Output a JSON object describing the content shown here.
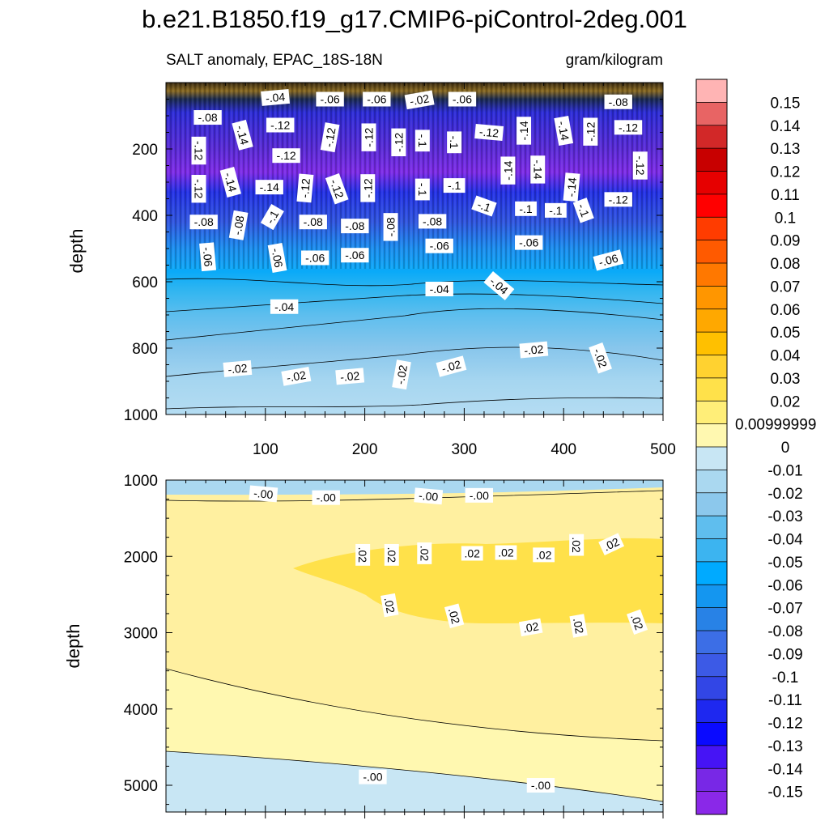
{
  "chart_data": {
    "type": "contour",
    "title": "b.e21.B1850.f19_g17.CMIP6-piControl-2deg.001",
    "subtitle_left": "SALT anomaly, EPAC_18S-18N",
    "subtitle_right": "gram/kilogram",
    "x_axis": {
      "range": [
        0,
        500
      ],
      "ticks": [
        "100",
        "200",
        "300",
        "400",
        "500"
      ]
    },
    "panels": [
      {
        "name": "upper",
        "ylabel": "depth",
        "ylim": [
          0,
          1000
        ],
        "yticks": [
          "200",
          "400",
          "600",
          "800",
          "1000"
        ],
        "contour_labels": [
          {
            "text": "-.04",
            "x": 110,
            "y": 45,
            "rot": -5
          },
          {
            "text": "-.06",
            "x": 165,
            "y": 50,
            "rot": 0
          },
          {
            "text": "-.06",
            "x": 212,
            "y": 50,
            "rot": 0
          },
          {
            "text": "-.02",
            "x": 255,
            "y": 52,
            "rot": -10
          },
          {
            "text": "-.06",
            "x": 298,
            "y": 50,
            "rot": 0
          },
          {
            "text": "-.08",
            "x": 455,
            "y": 58,
            "rot": 0
          },
          {
            "text": "-.08",
            "x": 42,
            "y": 105,
            "rot": 0
          },
          {
            "text": "-.12",
            "x": 115,
            "y": 128,
            "rot": 0
          },
          {
            "text": "-.14",
            "x": 77,
            "y": 158,
            "rot": 75
          },
          {
            "text": "-.12",
            "x": 165,
            "y": 165,
            "rot": -80
          },
          {
            "text": "-.12",
            "x": 204,
            "y": 165,
            "rot": -90
          },
          {
            "text": "-.12",
            "x": 234,
            "y": 180,
            "rot": -90
          },
          {
            "text": "-.1",
            "x": 258,
            "y": 175,
            "rot": 90
          },
          {
            "text": "-.1",
            "x": 290,
            "y": 180,
            "rot": 90
          },
          {
            "text": "-.12",
            "x": 325,
            "y": 150,
            "rot": 5
          },
          {
            "text": "-.14",
            "x": 360,
            "y": 145,
            "rot": -90
          },
          {
            "text": "-.14",
            "x": 400,
            "y": 145,
            "rot": 80
          },
          {
            "text": "-.12",
            "x": 427,
            "y": 148,
            "rot": -90
          },
          {
            "text": "-.12",
            "x": 465,
            "y": 135,
            "rot": 0
          },
          {
            "text": "-.12",
            "x": 33,
            "y": 205,
            "rot": 90
          },
          {
            "text": "-.12",
            "x": 121,
            "y": 220,
            "rot": 0
          },
          {
            "text": "-.12",
            "x": 477,
            "y": 250,
            "rot": 90
          },
          {
            "text": "-.14",
            "x": 344,
            "y": 265,
            "rot": -90
          },
          {
            "text": "-.14",
            "x": 374,
            "y": 262,
            "rot": 90
          },
          {
            "text": "-.14",
            "x": 65,
            "y": 300,
            "rot": 75
          },
          {
            "text": "-.12",
            "x": 33,
            "y": 320,
            "rot": 90
          },
          {
            "text": "-.14",
            "x": 104,
            "y": 315,
            "rot": 0
          },
          {
            "text": "-.12",
            "x": 140,
            "y": 318,
            "rot": -85
          },
          {
            "text": "-.12",
            "x": 172,
            "y": 320,
            "rot": 70
          },
          {
            "text": "-.12",
            "x": 203,
            "y": 318,
            "rot": -90
          },
          {
            "text": "-.1",
            "x": 258,
            "y": 322,
            "rot": 90
          },
          {
            "text": "-.1",
            "x": 290,
            "y": 310,
            "rot": 0
          },
          {
            "text": "-.14",
            "x": 408,
            "y": 315,
            "rot": -85
          },
          {
            "text": "-.12",
            "x": 455,
            "y": 352,
            "rot": 0
          },
          {
            "text": "-.1",
            "x": 320,
            "y": 372,
            "rot": 20
          },
          {
            "text": "-.1",
            "x": 362,
            "y": 380,
            "rot": 0
          },
          {
            "text": "-.1",
            "x": 392,
            "y": 385,
            "rot": 0
          },
          {
            "text": "-.1",
            "x": 420,
            "y": 385,
            "rot": 70
          },
          {
            "text": "-.08",
            "x": 38,
            "y": 420,
            "rot": 0
          },
          {
            "text": "-.08",
            "x": 73,
            "y": 430,
            "rot": -80
          },
          {
            "text": "-.1",
            "x": 107,
            "y": 405,
            "rot": -60
          },
          {
            "text": "-.08",
            "x": 148,
            "y": 420,
            "rot": 0
          },
          {
            "text": "-.08",
            "x": 190,
            "y": 432,
            "rot": 0
          },
          {
            "text": "-.08",
            "x": 226,
            "y": 435,
            "rot": -90
          },
          {
            "text": "-.08",
            "x": 268,
            "y": 418,
            "rot": 0
          },
          {
            "text": "-.06",
            "x": 42,
            "y": 525,
            "rot": 85
          },
          {
            "text": "-.06",
            "x": 112,
            "y": 528,
            "rot": 80
          },
          {
            "text": "-.06",
            "x": 150,
            "y": 528,
            "rot": 0
          },
          {
            "text": "-.06",
            "x": 190,
            "y": 520,
            "rot": 0
          },
          {
            "text": "-.06",
            "x": 275,
            "y": 492,
            "rot": 0
          },
          {
            "text": "-.06",
            "x": 365,
            "y": 482,
            "rot": 0
          },
          {
            "text": "-.06",
            "x": 445,
            "y": 535,
            "rot": -15
          },
          {
            "text": "-.04",
            "x": 275,
            "y": 622,
            "rot": 0
          },
          {
            "text": "-.04",
            "x": 335,
            "y": 612,
            "rot": 40
          },
          {
            "text": "-.04",
            "x": 119,
            "y": 675,
            "rot": 0
          },
          {
            "text": "-.02",
            "x": 72,
            "y": 862,
            "rot": -5
          },
          {
            "text": "-.02",
            "x": 131,
            "y": 885,
            "rot": -10
          },
          {
            "text": "-.02",
            "x": 185,
            "y": 885,
            "rot": -5
          },
          {
            "text": "-.02",
            "x": 237,
            "y": 880,
            "rot": -80
          },
          {
            "text": "-.02",
            "x": 287,
            "y": 855,
            "rot": -15
          },
          {
            "text": "-.02",
            "x": 370,
            "y": 805,
            "rot": -5
          },
          {
            "text": "-.02",
            "x": 437,
            "y": 830,
            "rot": 70
          }
        ]
      },
      {
        "name": "lower",
        "ylabel": "depth",
        "ylim": [
          1000,
          5350
        ],
        "yticks": [
          "1000",
          "2000",
          "3000",
          "4000",
          "5000"
        ],
        "contour_labels": [
          {
            "text": "-.00",
            "x": 98,
            "y": 1180,
            "rot": 5
          },
          {
            "text": "-.00",
            "x": 161,
            "y": 1230,
            "rot": 0
          },
          {
            "text": "-.00",
            "x": 264,
            "y": 1210,
            "rot": 5
          },
          {
            "text": "-.00",
            "x": 315,
            "y": 1200,
            "rot": 0
          },
          {
            "text": ".02",
            "x": 198,
            "y": 1980,
            "rot": 90
          },
          {
            "text": ".02",
            "x": 227,
            "y": 1980,
            "rot": 90
          },
          {
            "text": ".02",
            "x": 260,
            "y": 1960,
            "rot": 90
          },
          {
            "text": ".02",
            "x": 308,
            "y": 1960,
            "rot": 0
          },
          {
            "text": ".02",
            "x": 342,
            "y": 1950,
            "rot": 0
          },
          {
            "text": ".02",
            "x": 380,
            "y": 1980,
            "rot": 0
          },
          {
            "text": ".02",
            "x": 413,
            "y": 1850,
            "rot": 90
          },
          {
            "text": ".02",
            "x": 448,
            "y": 1840,
            "rot": -25
          },
          {
            "text": ".02",
            "x": 225,
            "y": 2640,
            "rot": 80
          },
          {
            "text": ".02",
            "x": 290,
            "y": 2780,
            "rot": 75
          },
          {
            "text": ".02",
            "x": 367,
            "y": 2930,
            "rot": -10
          },
          {
            "text": ".02",
            "x": 415,
            "y": 2910,
            "rot": 80
          },
          {
            "text": ".02",
            "x": 474,
            "y": 2860,
            "rot": 70
          },
          {
            "text": "-.00",
            "x": 208,
            "y": 4890,
            "rot": 0
          },
          {
            "text": "-.00",
            "x": 377,
            "y": 5000,
            "rot": 0
          }
        ]
      }
    ],
    "colorbar": {
      "labels": [
        "0.15",
        "0.14",
        "0.13",
        "0.12",
        "0.11",
        "0.1",
        "0.09",
        "0.08",
        "0.07",
        "0.06",
        "0.05",
        "0.04",
        "0.03",
        "0.02",
        "0.00999999",
        "0",
        "-0.01",
        "-0.02",
        "-0.03",
        "-0.04",
        "-0.05",
        "-0.06",
        "-0.07",
        "-0.08",
        "-0.09",
        "-0.1",
        "-0.11",
        "-0.12",
        "-0.13",
        "-0.14",
        "-0.15"
      ],
      "colors": [
        "#FFB4B4",
        "#E86464",
        "#D22828",
        "#C80000",
        "#E60000",
        "#FF0000",
        "#FF3C00",
        "#FF5A00",
        "#FF7800",
        "#FF9600",
        "#FFA800",
        "#FFC000",
        "#FFD230",
        "#FFE14A",
        "#FFEE78",
        "#FFF8B0",
        "#C8E6F4",
        "#AAD8F0",
        "#8CC8EC",
        "#5FBEEE",
        "#3CB4F0",
        "#00AAFF",
        "#1496F0",
        "#2882E6",
        "#3C6EE6",
        "#3C5AE6",
        "#3246E6",
        "#1E28F0",
        "#0A0AFF",
        "#4614F5",
        "#7828E6",
        "#8A28E8"
      ]
    }
  }
}
